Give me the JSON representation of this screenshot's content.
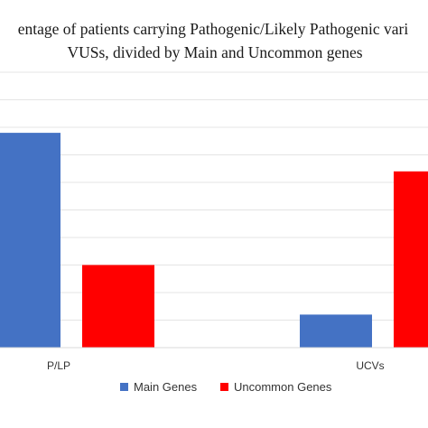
{
  "chart_data": {
    "type": "bar",
    "title_line1": "entage of patients carrying Pathogenic/Likely Pathogenic vari",
    "title_line2": "VUSs, divided by Main and Uncommon genes",
    "categories": [
      "P/LP",
      "UCVs"
    ],
    "series": [
      {
        "name": "Main Genes",
        "values": [
          78,
          12
        ],
        "color": "#4472C4"
      },
      {
        "name": "Uncommon Genes",
        "values": [
          30,
          64
        ],
        "color": "#FF0000"
      }
    ],
    "ylim": [
      0,
      100
    ],
    "gridlines": true,
    "legend_position": "bottom",
    "xlabel": "",
    "ylabel": ""
  }
}
